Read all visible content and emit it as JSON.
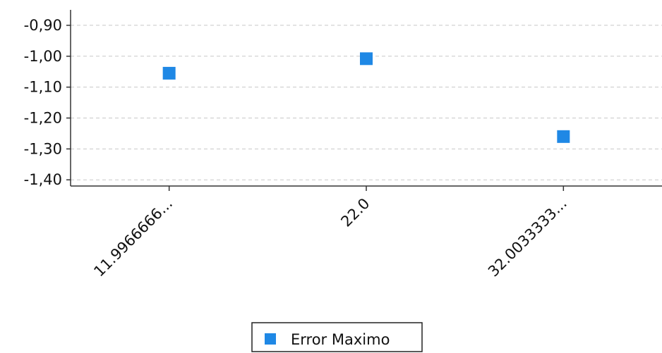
{
  "chart_data": {
    "type": "scatter",
    "categories": [
      "11.9966666...",
      "22.0",
      "32.0033333..."
    ],
    "series": [
      {
        "name": "Error Maximo",
        "values": [
          -1.055,
          -1.008,
          -1.26
        ],
        "color": "#1f88e5"
      }
    ],
    "ylim": [
      -1.42,
      -0.85
    ],
    "yticks": [
      -0.9,
      -1.0,
      -1.1,
      -1.2,
      -1.3,
      -1.4
    ],
    "ytick_labels": [
      "-0,90",
      "-1,00",
      "-1,10",
      "-1,20",
      "-1,30",
      "-1,40"
    ],
    "grid": true,
    "legend_position": "bottom-center",
    "marker": "square"
  }
}
